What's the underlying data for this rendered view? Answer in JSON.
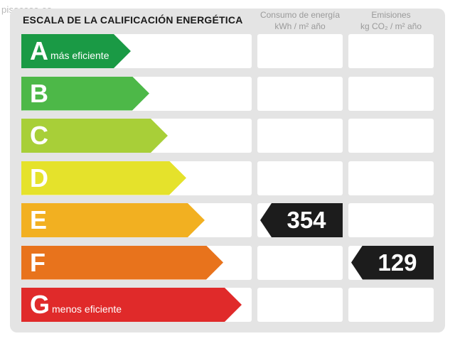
{
  "watermark": "pisocasa.es",
  "title": "ESCALA DE LA CALIFICACIÓN ENERGÉTICA",
  "columns": {
    "consumo": {
      "line1": "Consumo de energía",
      "line2": "kWh / m² año"
    },
    "emisiones": {
      "line1": "Emisiones",
      "line2": "kg CO₂ / m² año"
    }
  },
  "ratings": [
    {
      "letter": "A",
      "label": "más eficiente",
      "color": "#1a9a45"
    },
    {
      "letter": "B",
      "label": "",
      "color": "#4db848"
    },
    {
      "letter": "C",
      "label": "",
      "color": "#a8cf38"
    },
    {
      "letter": "D",
      "label": "",
      "color": "#e5e22b"
    },
    {
      "letter": "E",
      "label": "",
      "color": "#f2b021"
    },
    {
      "letter": "F",
      "label": "",
      "color": "#e8731c"
    },
    {
      "letter": "G",
      "label": "menos eficiente",
      "color": "#e02a2a"
    }
  ],
  "consumo": {
    "rating": "E",
    "value": "354"
  },
  "emisiones": {
    "rating": "F",
    "value": "129"
  }
}
